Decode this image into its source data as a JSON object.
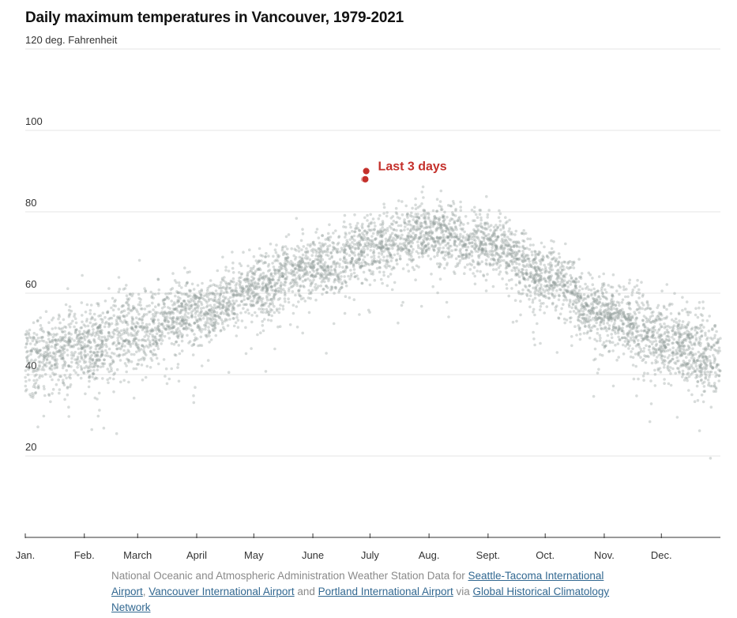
{
  "chart_data": {
    "type": "scatter",
    "title": "Daily maximum temperatures in Vancouver, 1979-2021",
    "y_unit_label": "120 deg. Fahrenheit",
    "ylim": [
      0,
      120
    ],
    "y_ticks": [
      {
        "value": 120,
        "label": "120 deg. Fahrenheit"
      },
      {
        "value": 100,
        "label": "100"
      },
      {
        "value": 80,
        "label": "80"
      },
      {
        "value": 60,
        "label": "60"
      },
      {
        "value": 40,
        "label": "40"
      },
      {
        "value": 20,
        "label": "20"
      }
    ],
    "x_domain_days": [
      0,
      365
    ],
    "x_ticks": [
      {
        "day": 0,
        "label": "Jan."
      },
      {
        "day": 31,
        "label": "Feb."
      },
      {
        "day": 59,
        "label": "March"
      },
      {
        "day": 90,
        "label": "April"
      },
      {
        "day": 120,
        "label": "May"
      },
      {
        "day": 151,
        "label": "June"
      },
      {
        "day": 181,
        "label": "July"
      },
      {
        "day": 212,
        "label": "Aug."
      },
      {
        "day": 243,
        "label": "Sept."
      },
      {
        "day": 273,
        "label": "Oct."
      },
      {
        "day": 304,
        "label": "Nov."
      },
      {
        "day": 334,
        "label": "Dec."
      }
    ],
    "grid": true,
    "years": [
      1979,
      2021
    ],
    "historical_series": {
      "color": "#8e9a98",
      "seasonal_mean": [
        {
          "day": 0,
          "value": 44
        },
        {
          "day": 31,
          "value": 47
        },
        {
          "day": 59,
          "value": 51
        },
        {
          "day": 90,
          "value": 55
        },
        {
          "day": 120,
          "value": 61
        },
        {
          "day": 151,
          "value": 66
        },
        {
          "day": 181,
          "value": 71
        },
        {
          "day": 212,
          "value": 75
        },
        {
          "day": 243,
          "value": 72
        },
        {
          "day": 273,
          "value": 64
        },
        {
          "day": 304,
          "value": 55
        },
        {
          "day": 334,
          "value": 48
        },
        {
          "day": 365,
          "value": 44
        }
      ],
      "count": 5500
    },
    "highlight_series": {
      "color": "#c4302b",
      "label": "Last 3 days",
      "points": [
        {
          "day": 178,
          "value": 88
        },
        {
          "day": 178.5,
          "value": 88
        },
        {
          "day": 179,
          "value": 90
        }
      ]
    }
  },
  "source": {
    "prefix": "National Oceanic and Atmospheric Administration Weather Station Data for ",
    "link1": "Seattle-Tacoma International Airport",
    "sep1": ", ",
    "link2": "Vancouver International Airport",
    "sep2": " and ",
    "link3": "Portland International Airport",
    "sep3": " via ",
    "link4": "Global Historical Climatology Network"
  }
}
